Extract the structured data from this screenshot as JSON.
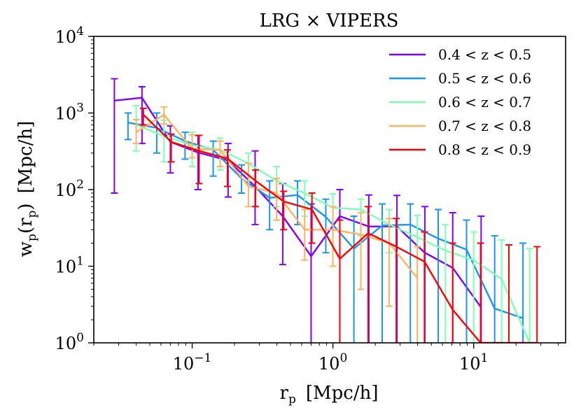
{
  "chart_data": {
    "type": "line",
    "title": "LRG × VIPERS",
    "xlabel": {
      "base": "r",
      "sub": "p",
      "units": "[Mpc/h]"
    },
    "ylabel": {
      "base": "w",
      "sub": "p",
      "open": "(",
      "arg": "r",
      "arg_sub": "p",
      "close": ")",
      "units": "[Mpc/h]"
    },
    "xscale": "log",
    "yscale": "log",
    "xlim": [
      0.02,
      45
    ],
    "ylim": [
      1,
      10000
    ],
    "legend_location": "top-right",
    "x_ticks": [
      {
        "value": 0.1,
        "base": "10",
        "exp": "−1"
      },
      {
        "value": 1,
        "base": "10",
        "exp": "0"
      },
      {
        "value": 10,
        "base": "10",
        "exp": "1"
      }
    ],
    "y_ticks": [
      {
        "value": 1,
        "base": "10",
        "exp": "0"
      },
      {
        "value": 10,
        "base": "10",
        "exp": "1"
      },
      {
        "value": 100,
        "base": "10",
        "exp": "2"
      },
      {
        "value": 1000,
        "base": "10",
        "exp": "3"
      },
      {
        "value": 10000,
        "base": "10",
        "exp": "4"
      }
    ],
    "series": [
      {
        "name": "0.4 < z < 0.5",
        "color": "#8000ff",
        "x": [
          0.028,
          0.044,
          0.07,
          0.11,
          0.18,
          0.28,
          0.44,
          0.7,
          1.12,
          1.8,
          2.85,
          4.5,
          7.1,
          11.3
        ],
        "y": [
          1450,
          1580,
          420,
          305,
          240,
          110,
          45,
          13.5,
          45,
          33,
          33,
          15,
          9.5,
          2.9
        ],
        "lo": [
          90,
          400,
          165,
          100,
          80,
          35,
          10.5,
          1,
          1,
          1,
          1,
          1,
          1,
          1
        ],
        "hi": [
          2800,
          2200,
          680,
          510,
          400,
          320,
          120,
          65,
          100,
          85,
          84,
          60,
          50,
          45
        ]
      },
      {
        "name": "0.5 < z < 0.6",
        "color": "#1996f3",
        "x": [
          0.035,
          0.056,
          0.089,
          0.141,
          0.224,
          0.355,
          0.56,
          0.89,
          1.41,
          2.24,
          3.55,
          5.6,
          8.9,
          14.1,
          22.4
        ],
        "y": [
          750,
          640,
          430,
          330,
          140,
          78,
          85,
          44,
          17,
          34,
          35,
          23,
          16.5,
          2.8,
          2.1
        ],
        "lo": [
          450,
          300,
          250,
          150,
          90,
          30,
          35,
          15,
          1,
          1,
          1,
          1,
          1,
          1,
          1
        ],
        "hi": [
          1000,
          1000,
          560,
          430,
          210,
          130,
          130,
          75,
          45,
          65,
          65,
          55,
          40,
          25,
          20
        ]
      },
      {
        "name": "0.6 < z < 0.7",
        "color": "#80ffb4",
        "x": [
          0.04,
          0.063,
          0.1,
          0.158,
          0.251,
          0.398,
          0.63,
          1.0,
          1.58,
          2.51,
          3.98,
          6.3,
          10,
          15.8,
          25
        ],
        "y": [
          700,
          500,
          380,
          330,
          220,
          130,
          90,
          58,
          55,
          35,
          24,
          16,
          12,
          6.8,
          1
        ],
        "lo": [
          320,
          230,
          200,
          180,
          130,
          60,
          45,
          30,
          25,
          15,
          1,
          1,
          1,
          1,
          1
        ],
        "hi": [
          1250,
          800,
          560,
          470,
          300,
          200,
          130,
          88,
          75,
          55,
          46,
          35,
          28,
          22,
          17
        ]
      },
      {
        "name": "0.7 < z < 0.8",
        "color": "#ffb360",
        "x": [
          0.04,
          0.063,
          0.1,
          0.158,
          0.251,
          0.398,
          0.63,
          1.0,
          1.58,
          2.51,
          3.98
        ],
        "y": [
          560,
          950,
          340,
          330,
          110,
          90,
          30,
          30,
          26,
          20,
          7
        ],
        "lo": [
          400,
          720,
          260,
          200,
          60,
          40,
          12,
          10,
          5,
          3,
          1
        ],
        "hi": [
          820,
          1200,
          520,
          430,
          220,
          140,
          55,
          60,
          50,
          42,
          18
        ]
      },
      {
        "name": "0.8 < z < 0.9",
        "color": "#ff0000",
        "x": [
          0.045,
          0.071,
          0.112,
          0.178,
          0.282,
          0.447,
          0.71,
          1.12,
          1.78,
          2.82,
          4.47,
          7.1,
          11.2,
          17.8,
          28.2
        ],
        "y": [
          950,
          420,
          320,
          255,
          130,
          70,
          55,
          12.5,
          27,
          18,
          11.5,
          2.7,
          1,
          1,
          1
        ],
        "lo": [
          700,
          230,
          120,
          110,
          60,
          30,
          20,
          1,
          1,
          1,
          1,
          1,
          1,
          1,
          1
        ],
        "hi": [
          1150,
          530,
          510,
          330,
          180,
          95,
          90,
          40,
          60,
          42,
          28,
          20,
          20,
          19,
          18
        ]
      }
    ]
  }
}
